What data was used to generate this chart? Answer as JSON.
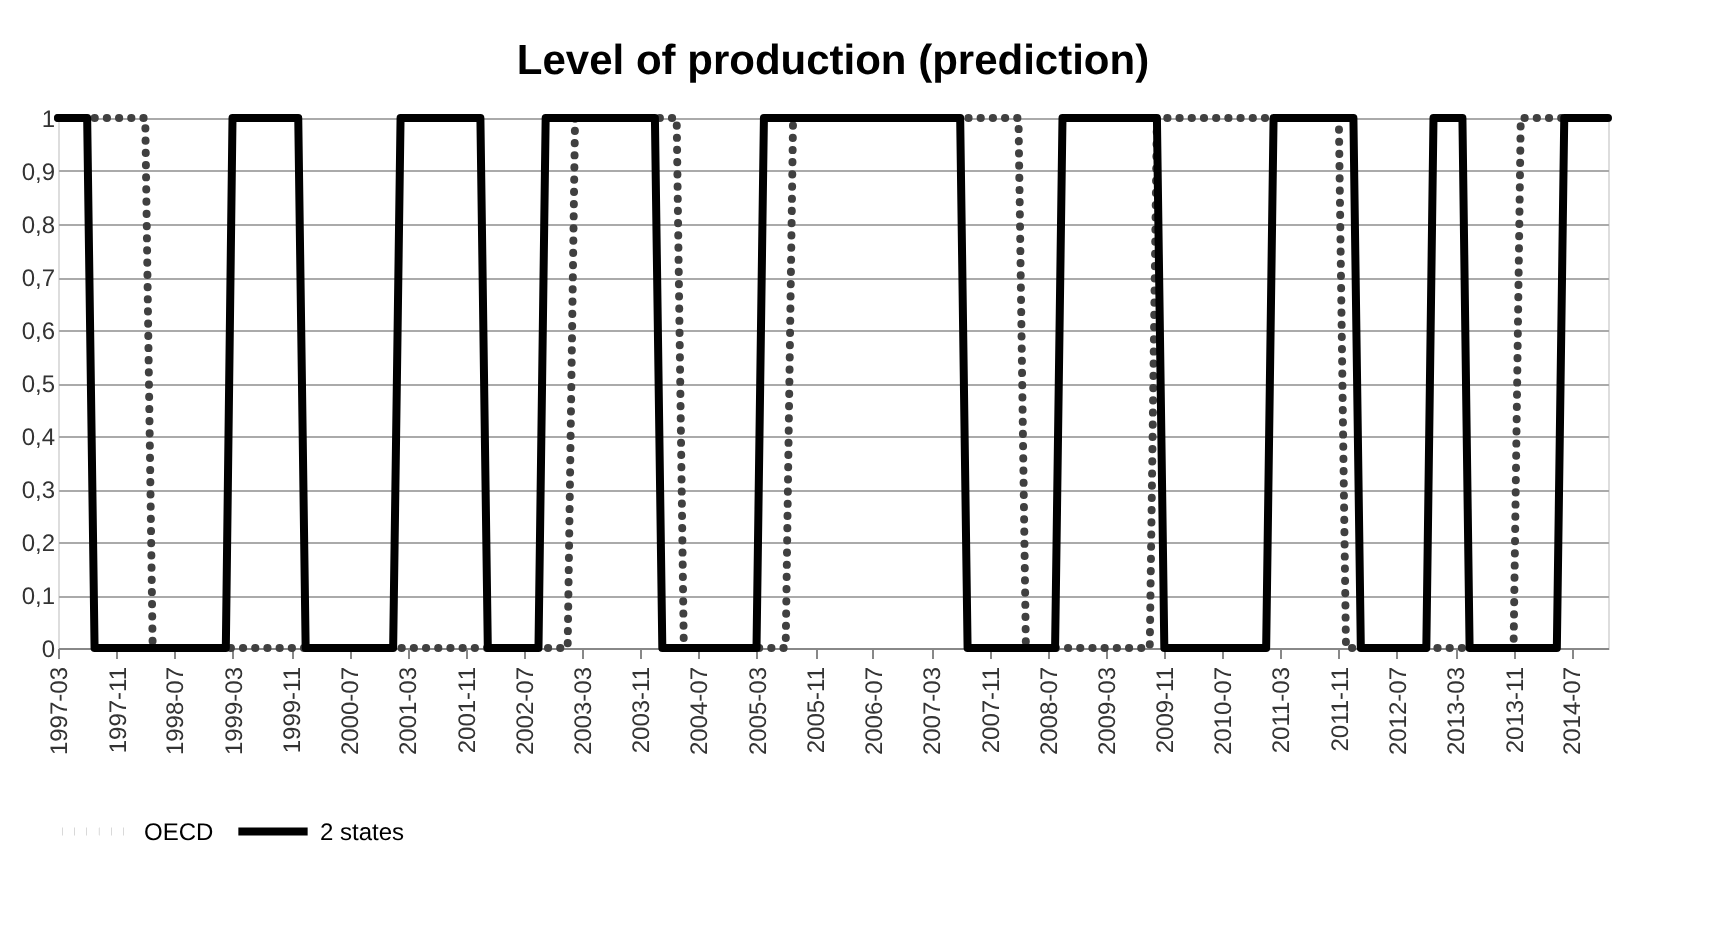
{
  "chart_data": {
    "type": "line",
    "title": "Level of production (prediction)",
    "series": [
      {
        "name": "OECD",
        "color": "#404040",
        "line_style": "dotted",
        "x": [
          "1997-03",
          "1998-03",
          "1998-04",
          "2003-01",
          "2003-02",
          "2004-04",
          "2004-05",
          "2005-07",
          "2005-08",
          "2008-03",
          "2008-04",
          "2009-09",
          "2009-10",
          "2011-11",
          "2011-12",
          "2013-11",
          "2013-12",
          "2014-12"
        ],
        "values": [
          1,
          1,
          0,
          0,
          1,
          1,
          0,
          0,
          1,
          1,
          0,
          0,
          1,
          1,
          0,
          0,
          1,
          1
        ]
      },
      {
        "name": "2 states",
        "color": "#000000",
        "line_style": "solid",
        "x": [
          "1997-03",
          "1997-07",
          "1997-08",
          "1999-02",
          "1999-03",
          "1999-12",
          "2000-01",
          "2001-01",
          "2001-02",
          "2002-01",
          "2002-02",
          "2002-09",
          "2002-10",
          "2004-01",
          "2004-02",
          "2005-03",
          "2005-04",
          "2007-07",
          "2007-08",
          "2008-08",
          "2008-09",
          "2009-10",
          "2009-11",
          "2011-01",
          "2011-02",
          "2012-01",
          "2012-02",
          "2012-11",
          "2012-12",
          "2013-04",
          "2013-05",
          "2014-05",
          "2014-06",
          "2014-12"
        ],
        "values": [
          1,
          1,
          0,
          0,
          1,
          1,
          0,
          0,
          1,
          1,
          0,
          0,
          1,
          1,
          0,
          0,
          1,
          1,
          0,
          0,
          1,
          1,
          0,
          0,
          1,
          1,
          0,
          0,
          1,
          1,
          0,
          0,
          1,
          1
        ]
      }
    ],
    "xlim": [
      "1997-03",
      "2014-12"
    ],
    "xticks": [
      "1997-03",
      "1997-11",
      "1998-07",
      "1999-03",
      "1999-11",
      "2000-07",
      "2001-03",
      "2001-11",
      "2002-07",
      "2003-03",
      "2003-11",
      "2004-07",
      "2005-03",
      "2005-11",
      "2006-07",
      "2007-03",
      "2007-11",
      "2008-07",
      "2009-03",
      "2009-11",
      "2010-07",
      "2011-03",
      "2011-11",
      "2012-07",
      "2013-03",
      "2013-11",
      "2014-07"
    ],
    "ylim": [
      0,
      1
    ],
    "yticks": [
      0,
      {
        "value": 0.1,
        "label": "0,1"
      },
      {
        "value": 0.2,
        "label": "0,2"
      },
      {
        "value": 0.3,
        "label": "0,3"
      },
      {
        "value": 0.4,
        "label": "0,4"
      },
      {
        "value": 0.5,
        "label": "0,5"
      },
      {
        "value": 0.6,
        "label": "0,6"
      },
      {
        "value": 0.7,
        "label": "0,7"
      },
      {
        "value": 0.8,
        "label": "0,8"
      },
      {
        "value": 0.9,
        "label": "0,9"
      },
      1
    ],
    "grid": "y",
    "legend": "bottom",
    "marker": "none"
  }
}
